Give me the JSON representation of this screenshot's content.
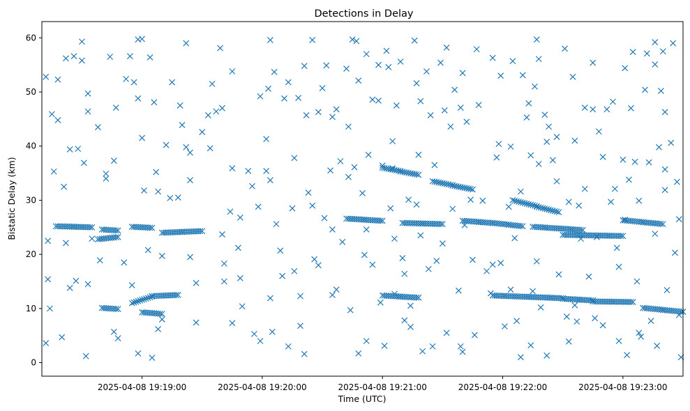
{
  "chart_data": {
    "type": "scatter",
    "title": "Detections in Delay",
    "xlabel": "Time (UTC)",
    "ylabel": "Bistatic Delay (km)",
    "marker": "x",
    "color": "#1f77b4",
    "grid": false,
    "legend": "none",
    "xlim": [
      "2025-04-08 19:18:10",
      "2025-04-08 19:23:30"
    ],
    "ylim": [
      -2.5,
      63
    ],
    "xticks": [
      "2025-04-08 19:19:00",
      "2025-04-08 19:20:00",
      "2025-04-08 19:21:00",
      "2025-04-08 19:22:00",
      "2025-04-08 19:23:00"
    ],
    "yticks": [
      0,
      10,
      20,
      30,
      40,
      50,
      60
    ],
    "tracks": [
      {
        "x": [
          "19:18:17",
          "19:18:35"
        ],
        "y": [
          25.2,
          25.0
        ]
      },
      {
        "x": [
          "19:18:40",
          "19:18:48"
        ],
        "y": [
          24.6,
          24.4
        ]
      },
      {
        "x": [
          "19:18:55",
          "19:19:05"
        ],
        "y": [
          25.1,
          24.9
        ]
      },
      {
        "x": [
          "19:19:10",
          "19:19:30"
        ],
        "y": [
          24.0,
          24.3
        ]
      },
      {
        "x": [
          "19:18:38",
          "19:18:48"
        ],
        "y": [
          22.8,
          23.2
        ]
      },
      {
        "x": [
          "19:18:40",
          "19:18:48"
        ],
        "y": [
          10.1,
          9.9
        ]
      },
      {
        "x": [
          "19:18:55",
          "19:19:05"
        ],
        "y": [
          11.0,
          12.2
        ]
      },
      {
        "x": [
          "19:19:00",
          "19:19:10"
        ],
        "y": [
          9.3,
          9.0
        ]
      },
      {
        "x": [
          "19:19:05",
          "19:19:18"
        ],
        "y": [
          12.3,
          12.5
        ]
      },
      {
        "x": [
          "19:20:42",
          "19:21:00"
        ],
        "y": [
          26.6,
          26.2
        ]
      },
      {
        "x": [
          "19:21:00",
          "19:21:18"
        ],
        "y": [
          36.0,
          34.7
        ]
      },
      {
        "x": [
          "19:21:25",
          "19:21:45"
        ],
        "y": [
          33.5,
          32.0
        ]
      },
      {
        "x": [
          "19:21:40",
          "19:21:55"
        ],
        "y": [
          26.2,
          25.8
        ]
      },
      {
        "x": [
          "19:21:55",
          "19:22:10"
        ],
        "y": [
          25.8,
          25.2
        ]
      },
      {
        "x": [
          "19:22:15",
          "19:22:40"
        ],
        "y": [
          25.1,
          24.5
        ]
      },
      {
        "x": [
          "19:22:05",
          "19:22:28"
        ],
        "y": [
          30.0,
          27.8
        ]
      },
      {
        "x": [
          "19:22:30",
          "19:23:00"
        ],
        "y": [
          23.6,
          23.4
        ]
      },
      {
        "x": [
          "19:21:00",
          "19:21:18"
        ],
        "y": [
          12.4,
          12.0
        ]
      },
      {
        "x": [
          "19:21:55",
          "19:22:30"
        ],
        "y": [
          12.4,
          11.9
        ]
      },
      {
        "x": [
          "19:22:30",
          "19:22:45"
        ],
        "y": [
          11.8,
          11.5
        ]
      },
      {
        "x": [
          "19:22:45",
          "19:23:05"
        ],
        "y": [
          11.3,
          11.2
        ]
      },
      {
        "x": [
          "19:23:00",
          "19:23:20"
        ],
        "y": [
          26.3,
          25.6
        ]
      },
      {
        "x": [
          "19:23:10",
          "19:23:30"
        ],
        "y": [
          10.1,
          9.4
        ]
      },
      {
        "x": [
          "19:21:10",
          "19:21:30"
        ],
        "y": [
          25.8,
          25.6
        ]
      }
    ],
    "points": [
      [
        "19:18:12",
        52.8
      ],
      [
        "19:18:13",
        15.4
      ],
      [
        "19:18:13",
        22.5
      ],
      [
        "19:18:12",
        3.6
      ],
      [
        "19:18:14",
        10.0
      ],
      [
        "19:18:15",
        45.9
      ],
      [
        "19:18:16",
        35.3
      ],
      [
        "19:18:18",
        52.3
      ],
      [
        "19:18:18",
        44.8
      ],
      [
        "19:18:20",
        4.7
      ],
      [
        "19:18:21",
        32.5
      ],
      [
        "19:18:22",
        56.2
      ],
      [
        "19:18:22",
        22.1
      ],
      [
        "19:18:24",
        39.4
      ],
      [
        "19:18:24",
        13.8
      ],
      [
        "19:18:26",
        56.6
      ],
      [
        "19:18:27",
        15.1
      ],
      [
        "19:18:28",
        39.5
      ],
      [
        "19:18:30",
        59.3
      ],
      [
        "19:18:30",
        55.8
      ],
      [
        "19:18:31",
        36.9
      ],
      [
        "19:18:32",
        1.2
      ],
      [
        "19:18:33",
        49.7
      ],
      [
        "19:18:33",
        46.4
      ],
      [
        "19:18:33",
        14.5
      ],
      [
        "19:18:35",
        22.9
      ],
      [
        "19:18:38",
        43.5
      ],
      [
        "19:18:39",
        18.9
      ],
      [
        "19:18:42",
        34.9
      ],
      [
        "19:18:42",
        34.0
      ],
      [
        "19:18:44",
        56.5
      ],
      [
        "19:18:46",
        37.3
      ],
      [
        "19:18:46",
        5.7
      ],
      [
        "19:18:47",
        47.1
      ],
      [
        "19:18:48",
        4.5
      ],
      [
        "19:18:51",
        18.5
      ],
      [
        "19:18:52",
        52.4
      ],
      [
        "19:18:54",
        56.6
      ],
      [
        "19:18:55",
        14.3
      ],
      [
        "19:18:56",
        51.8
      ],
      [
        "19:18:58",
        59.7
      ],
      [
        "19:18:58",
        48.8
      ],
      [
        "19:18:58",
        1.7
      ],
      [
        "19:19:00",
        59.8
      ],
      [
        "19:19:00",
        41.5
      ],
      [
        "19:19:01",
        31.8
      ],
      [
        "19:19:03",
        20.8
      ],
      [
        "19:19:04",
        56.4
      ],
      [
        "19:19:05",
        0.9
      ],
      [
        "19:19:06",
        48.1
      ],
      [
        "19:19:07",
        35.2
      ],
      [
        "19:19:08",
        31.6
      ],
      [
        "19:19:08",
        6.2
      ],
      [
        "19:19:10",
        8.0
      ],
      [
        "19:19:10",
        19.7
      ],
      [
        "19:19:12",
        40.2
      ],
      [
        "19:19:14",
        30.4
      ],
      [
        "19:19:15",
        51.8
      ],
      [
        "19:19:18",
        30.5
      ],
      [
        "19:19:19",
        47.5
      ],
      [
        "19:19:20",
        43.9
      ],
      [
        "19:19:22",
        59.0
      ],
      [
        "19:19:22",
        39.8
      ],
      [
        "19:19:24",
        38.8
      ],
      [
        "19:19:24",
        33.7
      ],
      [
        "19:19:24",
        19.5
      ],
      [
        "19:19:27",
        7.4
      ],
      [
        "19:19:27",
        14.7
      ],
      [
        "19:19:30",
        42.6
      ],
      [
        "19:19:33",
        45.7
      ],
      [
        "19:19:35",
        51.5
      ],
      [
        "19:19:34",
        39.6
      ],
      [
        "19:19:37",
        46.4
      ],
      [
        "19:19:39",
        58.1
      ],
      [
        "19:19:40",
        47.0
      ],
      [
        "19:19:41",
        15.0
      ],
      [
        "19:19:41",
        18.3
      ],
      [
        "19:19:40",
        23.7
      ],
      [
        "19:19:45",
        53.8
      ],
      [
        "19:19:45",
        35.9
      ],
      [
        "19:19:45",
        7.3
      ],
      [
        "19:19:44",
        27.9
      ],
      [
        "19:19:48",
        21.2
      ],
      [
        "19:19:49",
        26.8
      ],
      [
        "19:19:49",
        15.6
      ],
      [
        "19:19:50",
        10.4
      ],
      [
        "19:19:53",
        35.4
      ],
      [
        "19:19:55",
        32.6
      ],
      [
        "19:19:56",
        5.3
      ],
      [
        "19:19:58",
        28.8
      ],
      [
        "19:19:59",
        49.2
      ],
      [
        "19:19:59",
        4.0
      ],
      [
        "19:20:02",
        41.3
      ],
      [
        "19:20:02",
        35.4
      ],
      [
        "19:20:04",
        59.6
      ],
      [
        "19:20:03",
        50.6
      ],
      [
        "19:20:04",
        33.7
      ],
      [
        "19:20:04",
        11.9
      ],
      [
        "19:20:05",
        5.7
      ],
      [
        "19:20:06",
        53.7
      ],
      [
        "19:20:07",
        25.6
      ],
      [
        "19:20:09",
        20.7
      ],
      [
        "19:20:10",
        16.0
      ],
      [
        "19:20:11",
        48.8
      ],
      [
        "19:20:13",
        51.8
      ],
      [
        "19:20:13",
        3.0
      ],
      [
        "19:20:15",
        28.5
      ],
      [
        "19:20:16",
        37.8
      ],
      [
        "19:20:16",
        16.9
      ],
      [
        "19:20:18",
        48.9
      ],
      [
        "19:20:19",
        6.8
      ],
      [
        "19:20:19",
        12.3
      ],
      [
        "19:20:21",
        54.8
      ],
      [
        "19:20:21",
        1.6
      ],
      [
        "19:20:22",
        45.7
      ],
      [
        "19:20:23",
        31.4
      ],
      [
        "19:20:25",
        59.6
      ],
      [
        "19:20:25",
        29.0
      ],
      [
        "19:20:26",
        19.1
      ],
      [
        "19:20:28",
        46.3
      ],
      [
        "19:20:28",
        18.0
      ],
      [
        "19:20:30",
        50.7
      ],
      [
        "19:20:31",
        26.7
      ],
      [
        "19:20:32",
        54.9
      ],
      [
        "19:20:34",
        35.5
      ],
      [
        "19:20:35",
        45.4
      ],
      [
        "19:20:35",
        24.6
      ],
      [
        "19:20:35",
        12.5
      ],
      [
        "19:20:37",
        46.8
      ],
      [
        "19:20:37",
        13.5
      ],
      [
        "19:20:39",
        37.2
      ],
      [
        "19:20:40",
        22.3
      ],
      [
        "19:20:42",
        54.3
      ],
      [
        "19:20:43",
        43.6
      ],
      [
        "19:20:43",
        34.3
      ],
      [
        "19:20:44",
        9.7
      ],
      [
        "19:20:45",
        59.7
      ],
      [
        "19:20:46",
        36.1
      ],
      [
        "19:20:47",
        59.4
      ],
      [
        "19:20:48",
        52.1
      ],
      [
        "19:20:48",
        1.7
      ],
      [
        "19:20:50",
        31.3
      ],
      [
        "19:20:51",
        19.9
      ],
      [
        "19:20:52",
        57.0
      ],
      [
        "19:20:52",
        24.6
      ],
      [
        "19:20:52",
        4.0
      ],
      [
        "19:20:53",
        38.4
      ],
      [
        "19:20:55",
        48.6
      ],
      [
        "19:20:55",
        18.1
      ],
      [
        "19:20:58",
        55.0
      ],
      [
        "19:20:58",
        48.4
      ],
      [
        "19:20:59",
        11.1
      ],
      [
        "19:21:00",
        36.4
      ],
      [
        "19:21:01",
        3.1
      ],
      [
        "19:21:02",
        57.6
      ],
      [
        "19:21:03",
        54.6
      ],
      [
        "19:21:04",
        28.5
      ],
      [
        "19:21:05",
        40.9
      ],
      [
        "19:21:05",
        35.9
      ],
      [
        "19:21:06",
        22.9
      ],
      [
        "19:21:06",
        12.7
      ],
      [
        "19:21:07",
        47.5
      ],
      [
        "19:21:09",
        55.6
      ],
      [
        "19:21:10",
        19.3
      ],
      [
        "19:21:11",
        16.4
      ],
      [
        "19:21:11",
        7.8
      ],
      [
        "19:21:13",
        30.1
      ],
      [
        "19:21:14",
        6.6
      ],
      [
        "19:21:14",
        10.5
      ],
      [
        "19:21:16",
        59.5
      ],
      [
        "19:21:17",
        51.6
      ],
      [
        "19:21:17",
        29.2
      ],
      [
        "19:21:18",
        38.4
      ],
      [
        "19:21:19",
        48.3
      ],
      [
        "19:21:19",
        23.5
      ],
      [
        "19:21:20",
        2.1
      ],
      [
        "19:21:22",
        53.8
      ],
      [
        "19:21:23",
        17.3
      ],
      [
        "19:21:24",
        45.7
      ],
      [
        "19:21:25",
        3.0
      ],
      [
        "19:21:26",
        36.5
      ],
      [
        "19:21:27",
        18.8
      ],
      [
        "19:21:29",
        55.4
      ],
      [
        "19:21:30",
        22.0
      ],
      [
        "19:21:31",
        46.6
      ],
      [
        "19:21:32",
        58.2
      ],
      [
        "19:21:32",
        5.5
      ],
      [
        "19:21:34",
        43.6
      ],
      [
        "19:21:35",
        28.4
      ],
      [
        "19:21:36",
        50.4
      ],
      [
        "19:21:38",
        13.3
      ],
      [
        "19:21:39",
        3.0
      ],
      [
        "19:21:39",
        47.1
      ],
      [
        "19:21:40",
        2.0
      ],
      [
        "19:21:40",
        53.5
      ],
      [
        "19:21:41",
        25.4
      ],
      [
        "19:21:42",
        44.5
      ],
      [
        "19:21:44",
        30.1
      ],
      [
        "19:21:45",
        19.0
      ],
      [
        "19:21:46",
        5.1
      ],
      [
        "19:21:47",
        57.9
      ],
      [
        "19:21:48",
        47.6
      ],
      [
        "19:21:50",
        29.9
      ],
      [
        "19:21:52",
        16.9
      ],
      [
        "19:21:54",
        12.8
      ],
      [
        "19:21:55",
        56.3
      ],
      [
        "19:21:55",
        18.1
      ],
      [
        "19:21:57",
        37.9
      ],
      [
        "19:21:58",
        40.4
      ],
      [
        "19:21:59",
        53.0
      ],
      [
        "19:21:59",
        18.4
      ],
      [
        "19:22:01",
        6.7
      ],
      [
        "19:22:03",
        28.8
      ],
      [
        "19:22:04",
        39.9
      ],
      [
        "19:22:04",
        13.5
      ],
      [
        "19:22:05",
        55.7
      ],
      [
        "19:22:06",
        23.0
      ],
      [
        "19:22:07",
        7.7
      ],
      [
        "19:22:09",
        1.0
      ],
      [
        "19:22:09",
        31.6
      ],
      [
        "19:22:10",
        53.1
      ],
      [
        "19:22:12",
        45.3
      ],
      [
        "19:22:13",
        47.9
      ],
      [
        "19:22:14",
        3.2
      ],
      [
        "19:22:14",
        38.3
      ],
      [
        "19:22:15",
        13.2
      ],
      [
        "19:22:16",
        51.0
      ],
      [
        "19:22:17",
        18.7
      ],
      [
        "19:22:17",
        59.7
      ],
      [
        "19:22:18",
        56.1
      ],
      [
        "19:22:18",
        36.7
      ],
      [
        "19:22:19",
        10.2
      ],
      [
        "19:22:21",
        45.8
      ],
      [
        "19:22:22",
        40.8
      ],
      [
        "19:22:22",
        1.3
      ],
      [
        "19:22:23",
        43.6
      ],
      [
        "19:22:25",
        37.4
      ],
      [
        "19:22:27",
        41.7
      ],
      [
        "19:22:27",
        33.5
      ],
      [
        "19:22:28",
        16.3
      ],
      [
        "19:22:31",
        58.0
      ],
      [
        "19:22:32",
        8.5
      ],
      [
        "19:22:33",
        3.9
      ],
      [
        "19:22:33",
        29.7
      ],
      [
        "19:22:35",
        52.8
      ],
      [
        "19:22:36",
        41.0
      ],
      [
        "19:22:36",
        10.6
      ],
      [
        "19:22:37",
        7.6
      ],
      [
        "19:22:38",
        29.0
      ],
      [
        "19:22:39",
        22.9
      ],
      [
        "19:22:41",
        47.1
      ],
      [
        "19:22:41",
        32.1
      ],
      [
        "19:22:43",
        15.9
      ],
      [
        "19:22:45",
        55.4
      ],
      [
        "19:22:45",
        46.8
      ],
      [
        "19:22:46",
        8.2
      ],
      [
        "19:22:47",
        23.2
      ],
      [
        "19:22:48",
        42.7
      ],
      [
        "19:22:50",
        38.0
      ],
      [
        "19:22:50",
        6.9
      ],
      [
        "19:22:52",
        46.8
      ],
      [
        "19:22:54",
        29.7
      ],
      [
        "19:22:55",
        48.2
      ],
      [
        "19:22:56",
        32.1
      ],
      [
        "19:22:57",
        21.2
      ],
      [
        "19:22:58",
        17.7
      ],
      [
        "19:22:58",
        4.0
      ],
      [
        "19:23:00",
        37.5
      ],
      [
        "19:23:01",
        54.4
      ],
      [
        "19:23:01",
        26.4
      ],
      [
        "19:23:02",
        1.4
      ],
      [
        "19:23:03",
        33.8
      ],
      [
        "19:23:04",
        47.0
      ],
      [
        "19:23:05",
        57.4
      ],
      [
        "19:23:06",
        37.1
      ],
      [
        "19:23:07",
        15.0
      ],
      [
        "19:23:08",
        5.5
      ],
      [
        "19:23:08",
        29.9
      ],
      [
        "19:23:09",
        4.8
      ],
      [
        "19:23:11",
        50.4
      ],
      [
        "19:23:12",
        57.1
      ],
      [
        "19:23:13",
        37.0
      ],
      [
        "19:23:14",
        7.7
      ],
      [
        "19:23:16",
        59.2
      ],
      [
        "19:23:16",
        55.1
      ],
      [
        "19:23:16",
        23.8
      ],
      [
        "19:23:17",
        3.1
      ],
      [
        "19:23:18",
        39.8
      ],
      [
        "19:23:19",
        50.2
      ],
      [
        "19:23:20",
        57.5
      ],
      [
        "19:23:21",
        46.3
      ],
      [
        "19:23:21",
        31.9
      ],
      [
        "19:23:21",
        35.7
      ],
      [
        "19:23:22",
        13.4
      ],
      [
        "19:23:24",
        40.6
      ],
      [
        "19:23:25",
        59.0
      ],
      [
        "19:23:26",
        20.3
      ],
      [
        "19:23:27",
        33.4
      ],
      [
        "19:23:28",
        8.8
      ],
      [
        "19:23:28",
        26.5
      ],
      [
        "19:23:29",
        1.0
      ]
    ]
  }
}
